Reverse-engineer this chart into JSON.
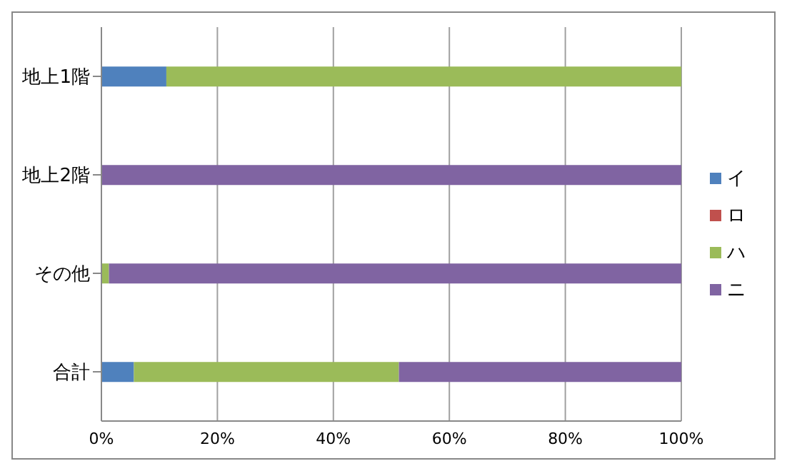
{
  "chart_data": {
    "type": "bar",
    "orientation": "horizontal",
    "stacked": true,
    "categories": [
      "地上1階",
      "地上2階",
      "その他",
      "合計"
    ],
    "series": [
      {
        "name": "イ",
        "color": "#4f81bd",
        "values": [
          11.2,
          0,
          0,
          5.6
        ]
      },
      {
        "name": "ロ",
        "color": "#c0504d",
        "values": [
          0,
          0,
          0,
          0
        ]
      },
      {
        "name": "ハ",
        "color": "#9bbb59",
        "values": [
          88.8,
          0,
          1.3,
          45.7
        ]
      },
      {
        "name": "ニ",
        "color": "#8064a2",
        "values": [
          0,
          100,
          98.7,
          48.7
        ]
      }
    ],
    "xlim": [
      0,
      100
    ],
    "xticks": [
      {
        "value": 0,
        "label": "0%"
      },
      {
        "value": 20,
        "label": "20%"
      },
      {
        "value": 40,
        "label": "40%"
      },
      {
        "value": 60,
        "label": "60%"
      },
      {
        "value": 80,
        "label": "80%"
      },
      {
        "value": 100,
        "label": "100%"
      }
    ],
    "grid": "x",
    "legend": "right"
  }
}
